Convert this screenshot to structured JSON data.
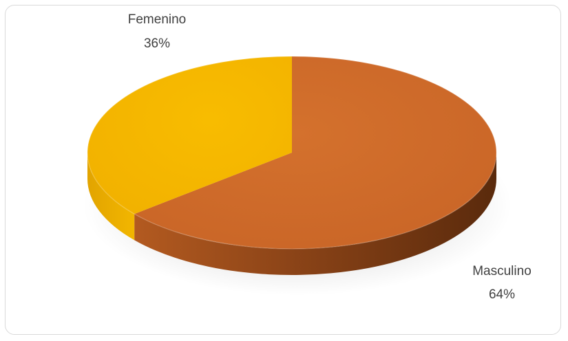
{
  "chart_data": {
    "type": "pie",
    "style": "3d",
    "categories": [
      "Femenino",
      "Masculino"
    ],
    "values": [
      36,
      64
    ],
    "data_labels": [
      {
        "category": "Femenino",
        "text": "36%"
      },
      {
        "category": "Masculino",
        "text": "64%"
      }
    ],
    "colors": {
      "Femenino": "#F6B800",
      "Masculino": "#CB6A2A"
    },
    "legend": "none"
  }
}
